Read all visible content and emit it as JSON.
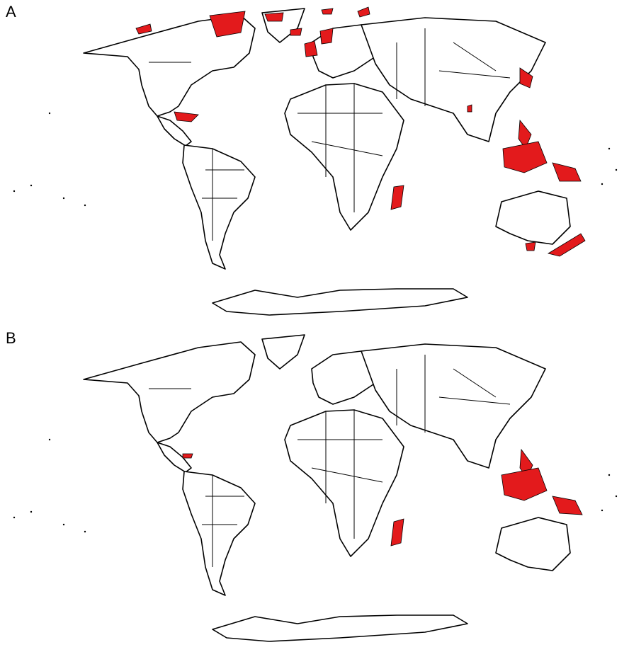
{
  "figure": {
    "panels": [
      {
        "label": "A",
        "highlight_color": "#e31a1c",
        "highlighted_regions": [
          "greenland",
          "iceland",
          "alaska",
          "canadian-arctic-islands",
          "svalbard",
          "novaya-zemlya",
          "british-isles",
          "scandinavia",
          "japan",
          "caribbean",
          "philippines",
          "borneo-sumatra",
          "new-guinea",
          "madagascar",
          "sri-lanka",
          "tasmania",
          "new-zealand"
        ]
      },
      {
        "label": "B",
        "highlight_color": "#e31a1c",
        "highlighted_regions": [
          "caribbean",
          "philippines",
          "borneo-sumatra",
          "new-guinea",
          "madagascar"
        ]
      }
    ]
  }
}
